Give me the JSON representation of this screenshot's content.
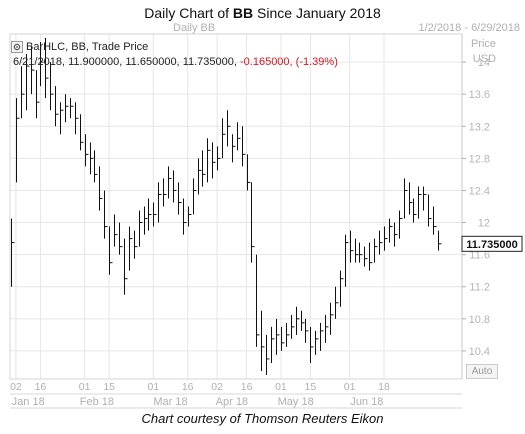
{
  "page": {
    "title_prefix": "Daily Chart of ",
    "title_symbol": "BB",
    "title_suffix": " Since January 2018",
    "header_left": "Daily BB",
    "header_right": "1/2/2018 - 6/29/2018",
    "credit": "Chart courtesy of Thomson Reuters Eikon",
    "auto_label": "Auto"
  },
  "legend": {
    "name": "BarHLC, BB, Trade Price",
    "date": "6/21/2018,",
    "high": "11.900000,",
    "low": "11.650000,",
    "close": "11.735000,",
    "change": "-0.165000,",
    "change_pct": "(-1.39%)"
  },
  "chart_data": {
    "type": "ohlc",
    "series_name": "BB",
    "y_axis": {
      "position": "right",
      "unit_label": "Price",
      "currency": "USD",
      "ylim": [
        10.05,
        14.35
      ],
      "ticks": [
        10.4,
        10.8,
        11.2,
        11.6,
        12,
        12.4,
        12.8,
        13.2,
        13.6,
        14
      ],
      "tick_labels": [
        "10.4",
        "10.8",
        "11.2",
        "11.6",
        "12",
        "12.4",
        "12.8",
        "13.2",
        "13.6",
        "14"
      ]
    },
    "last_price_label": "11.735000",
    "last_price": 11.735,
    "x_axis": {
      "tick_labels": [
        "02",
        "16",
        "01",
        "15",
        "01",
        "16",
        "02",
        "16",
        "01",
        "15",
        "01",
        "18"
      ],
      "month_labels": [
        "Jan 18",
        "Feb 18",
        "Mar 18",
        "Apr 18",
        "May 18",
        "Jun 18"
      ]
    },
    "grid": true,
    "bars": [
      {
        "h": 12.05,
        "l": 11.2,
        "c": 11.75
      },
      {
        "h": 13.55,
        "l": 12.5,
        "c": 13.3
      },
      {
        "h": 13.95,
        "l": 13.3,
        "c": 13.6
      },
      {
        "h": 14.1,
        "l": 13.4,
        "c": 13.95
      },
      {
        "h": 14.2,
        "l": 13.6,
        "c": 13.9
      },
      {
        "h": 13.9,
        "l": 13.3,
        "c": 13.5
      },
      {
        "h": 14.25,
        "l": 13.7,
        "c": 14.0
      },
      {
        "h": 14.3,
        "l": 13.55,
        "c": 13.8
      },
      {
        "h": 14.0,
        "l": 13.4,
        "c": 13.6
      },
      {
        "h": 13.7,
        "l": 13.2,
        "c": 13.35
      },
      {
        "h": 13.5,
        "l": 13.1,
        "c": 13.4
      },
      {
        "h": 13.6,
        "l": 13.25,
        "c": 13.45
      },
      {
        "h": 13.55,
        "l": 13.3,
        "c": 13.45
      },
      {
        "h": 13.5,
        "l": 13.1,
        "c": 13.3
      },
      {
        "h": 13.35,
        "l": 12.9,
        "c": 13.0
      },
      {
        "h": 13.1,
        "l": 12.7,
        "c": 12.85
      },
      {
        "h": 13.0,
        "l": 12.6,
        "c": 12.8
      },
      {
        "h": 12.9,
        "l": 12.5,
        "c": 12.6
      },
      {
        "h": 12.7,
        "l": 12.15,
        "c": 12.3
      },
      {
        "h": 12.4,
        "l": 11.8,
        "c": 11.95
      },
      {
        "h": 11.95,
        "l": 11.35,
        "c": 11.5
      },
      {
        "h": 12.1,
        "l": 11.7,
        "c": 11.85
      },
      {
        "h": 12.0,
        "l": 11.6,
        "c": 11.7
      },
      {
        "h": 11.8,
        "l": 11.1,
        "c": 11.3
      },
      {
        "h": 11.95,
        "l": 11.4,
        "c": 11.8
      },
      {
        "h": 11.9,
        "l": 11.55,
        "c": 11.7
      },
      {
        "h": 12.15,
        "l": 11.7,
        "c": 12.0
      },
      {
        "h": 12.2,
        "l": 11.85,
        "c": 12.05
      },
      {
        "h": 12.3,
        "l": 11.9,
        "c": 12.1
      },
      {
        "h": 12.25,
        "l": 11.95,
        "c": 12.1
      },
      {
        "h": 12.5,
        "l": 12.0,
        "c": 12.35
      },
      {
        "h": 12.55,
        "l": 12.2,
        "c": 12.35
      },
      {
        "h": 12.7,
        "l": 12.3,
        "c": 12.55
      },
      {
        "h": 12.65,
        "l": 12.25,
        "c": 12.4
      },
      {
        "h": 12.5,
        "l": 12.1,
        "c": 12.25
      },
      {
        "h": 12.3,
        "l": 11.85,
        "c": 12.0
      },
      {
        "h": 12.2,
        "l": 11.95,
        "c": 12.1
      },
      {
        "h": 12.55,
        "l": 12.1,
        "c": 12.4
      },
      {
        "h": 12.8,
        "l": 12.35,
        "c": 12.65
      },
      {
        "h": 12.9,
        "l": 12.45,
        "c": 12.6
      },
      {
        "h": 13.05,
        "l": 12.5,
        "c": 12.9
      },
      {
        "h": 13.0,
        "l": 12.55,
        "c": 12.75
      },
      {
        "h": 12.95,
        "l": 12.65,
        "c": 12.8
      },
      {
        "h": 13.3,
        "l": 12.8,
        "c": 13.1
      },
      {
        "h": 13.4,
        "l": 12.95,
        "c": 13.2
      },
      {
        "h": 13.1,
        "l": 12.75,
        "c": 12.95
      },
      {
        "h": 13.25,
        "l": 12.9,
        "c": 13.05
      },
      {
        "h": 13.2,
        "l": 12.7,
        "c": 12.85
      },
      {
        "h": 12.85,
        "l": 12.4,
        "c": 12.5
      },
      {
        "h": 12.5,
        "l": 11.5,
        "c": 11.7
      },
      {
        "h": 11.6,
        "l": 10.45,
        "c": 10.6
      },
      {
        "h": 10.9,
        "l": 10.15,
        "c": 10.45
      },
      {
        "h": 10.6,
        "l": 10.1,
        "c": 10.3
      },
      {
        "h": 10.7,
        "l": 10.25,
        "c": 10.55
      },
      {
        "h": 10.8,
        "l": 10.35,
        "c": 10.6
      },
      {
        "h": 10.7,
        "l": 10.4,
        "c": 10.5
      },
      {
        "h": 10.75,
        "l": 10.45,
        "c": 10.6
      },
      {
        "h": 10.85,
        "l": 10.55,
        "c": 10.7
      },
      {
        "h": 10.95,
        "l": 10.6,
        "c": 10.8
      },
      {
        "h": 10.9,
        "l": 10.65,
        "c": 10.75
      },
      {
        "h": 10.8,
        "l": 10.5,
        "c": 10.65
      },
      {
        "h": 10.7,
        "l": 10.25,
        "c": 10.45
      },
      {
        "h": 10.65,
        "l": 10.35,
        "c": 10.55
      },
      {
        "h": 10.75,
        "l": 10.4,
        "c": 10.65
      },
      {
        "h": 10.85,
        "l": 10.5,
        "c": 10.7
      },
      {
        "h": 11.0,
        "l": 10.6,
        "c": 10.85
      },
      {
        "h": 11.2,
        "l": 10.8,
        "c": 11.0
      },
      {
        "h": 11.4,
        "l": 10.95,
        "c": 11.3
      },
      {
        "h": 11.85,
        "l": 11.2,
        "c": 11.75
      },
      {
        "h": 11.9,
        "l": 11.5,
        "c": 11.65
      },
      {
        "h": 11.8,
        "l": 11.5,
        "c": 11.6
      },
      {
        "h": 11.75,
        "l": 11.5,
        "c": 11.6
      },
      {
        "h": 11.7,
        "l": 11.45,
        "c": 11.55
      },
      {
        "h": 11.75,
        "l": 11.4,
        "c": 11.5
      },
      {
        "h": 11.8,
        "l": 11.5,
        "c": 11.7
      },
      {
        "h": 11.9,
        "l": 11.6,
        "c": 11.75
      },
      {
        "h": 11.95,
        "l": 11.65,
        "c": 11.8
      },
      {
        "h": 12.05,
        "l": 11.75,
        "c": 11.95
      },
      {
        "h": 12.0,
        "l": 11.7,
        "c": 11.85
      },
      {
        "h": 12.15,
        "l": 11.8,
        "c": 12.05
      },
      {
        "h": 12.55,
        "l": 12.05,
        "c": 12.4
      },
      {
        "h": 12.5,
        "l": 12.1,
        "c": 12.25
      },
      {
        "h": 12.3,
        "l": 12.0,
        "c": 12.1
      },
      {
        "h": 12.45,
        "l": 12.05,
        "c": 12.35
      },
      {
        "h": 12.45,
        "l": 12.15,
        "c": 12.35
      },
      {
        "h": 12.35,
        "l": 11.95,
        "c": 12.05
      },
      {
        "h": 12.2,
        "l": 11.85,
        "c": 11.95
      },
      {
        "h": 11.9,
        "l": 11.65,
        "c": 11.735
      }
    ]
  }
}
